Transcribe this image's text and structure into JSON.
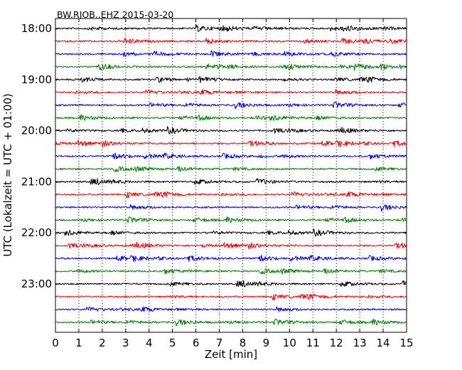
{
  "chart_data": {
    "type": "line",
    "title": "BW.RJOB..EHZ 2015-03-20",
    "xlabel": "Zeit  [min]",
    "ylabel": "UTC (Lokalzeit = UTC + 01:00)",
    "xlim": [
      0,
      15
    ],
    "x_ticks": [
      "0",
      "1",
      "2",
      "3",
      "4",
      "5",
      "6",
      "7",
      "8",
      "9",
      "10",
      "11",
      "12",
      "13",
      "14",
      "15"
    ],
    "y_tick_labels": [
      "18:00",
      "19:00",
      "20:00",
      "21:00",
      "22:00",
      "23:00"
    ],
    "grid": "vertical dotted",
    "trace_interval_minutes": 15,
    "series_colors": [
      "#000000",
      "#ff0000",
      "#0000ff",
      "#008000"
    ],
    "traces": [
      {
        "start": "18:00"
      },
      {
        "start": "18:15"
      },
      {
        "start": "18:30"
      },
      {
        "start": "18:45"
      },
      {
        "start": "19:00"
      },
      {
        "start": "19:15"
      },
      {
        "start": "19:30"
      },
      {
        "start": "19:45"
      },
      {
        "start": "20:00"
      },
      {
        "start": "20:15"
      },
      {
        "start": "20:30"
      },
      {
        "start": "20:45"
      },
      {
        "start": "21:00"
      },
      {
        "start": "21:15"
      },
      {
        "start": "21:30"
      },
      {
        "start": "21:45"
      },
      {
        "start": "22:00"
      },
      {
        "start": "22:15"
      },
      {
        "start": "22:30"
      },
      {
        "start": "22:45"
      },
      {
        "start": "23:00"
      },
      {
        "start": "23:15"
      },
      {
        "start": "23:30"
      },
      {
        "start": "23:45"
      }
    ]
  }
}
